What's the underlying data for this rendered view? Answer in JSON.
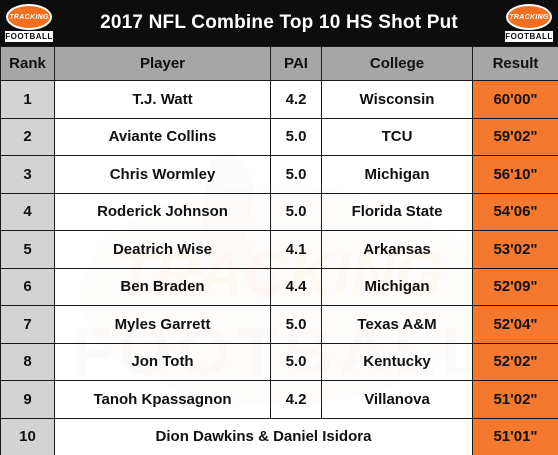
{
  "title": "2017 NFL Combine Top 10 HS Shot Put",
  "logo": {
    "line1": "TRACKING",
    "line2": "FOOTBALL"
  },
  "columns": [
    "Rank",
    "Player",
    "PAI",
    "College",
    "Result"
  ],
  "rows": [
    {
      "rank": "1",
      "player": "T.J. Watt",
      "pai": "4.2",
      "college": "Wisconsin",
      "result": "60'00\""
    },
    {
      "rank": "2",
      "player": "Aviante Collins",
      "pai": "5.0",
      "college": "TCU",
      "result": "59'02\""
    },
    {
      "rank": "3",
      "player": "Chris Wormley",
      "pai": "5.0",
      "college": "Michigan",
      "result": "56'10\""
    },
    {
      "rank": "4",
      "player": "Roderick Johnson",
      "pai": "5.0",
      "college": "Florida State",
      "result": "54'06\""
    },
    {
      "rank": "5",
      "player": "Deatrich Wise",
      "pai": "4.1",
      "college": "Arkansas",
      "result": "53'02\""
    },
    {
      "rank": "6",
      "player": "Ben Braden",
      "pai": "4.4",
      "college": "Michigan",
      "result": "52'09\""
    },
    {
      "rank": "7",
      "player": "Myles Garrett",
      "pai": "5.0",
      "college": "Texas A&M",
      "result": "52'04\""
    },
    {
      "rank": "8",
      "player": "Jon Toth",
      "pai": "5.0",
      "college": "Kentucky",
      "result": "52'02\""
    },
    {
      "rank": "9",
      "player": "Tanoh Kpassagnon",
      "pai": "4.2",
      "college": "Villanova",
      "result": "51'02\""
    }
  ],
  "last_row": {
    "rank": "10",
    "players": "Dion Dawkins & Daniel Isidora",
    "result": "51'01\""
  },
  "colors": {
    "title_bg": "#0d0d0d",
    "header_bg": "#a6a6a6",
    "rank_bg": "#d3d3d3",
    "result_bg": "#f4792f",
    "brand_orange": "#f26f21"
  },
  "watermark": {
    "line1": "TRACKING",
    "line2": "FOOTBALL"
  }
}
